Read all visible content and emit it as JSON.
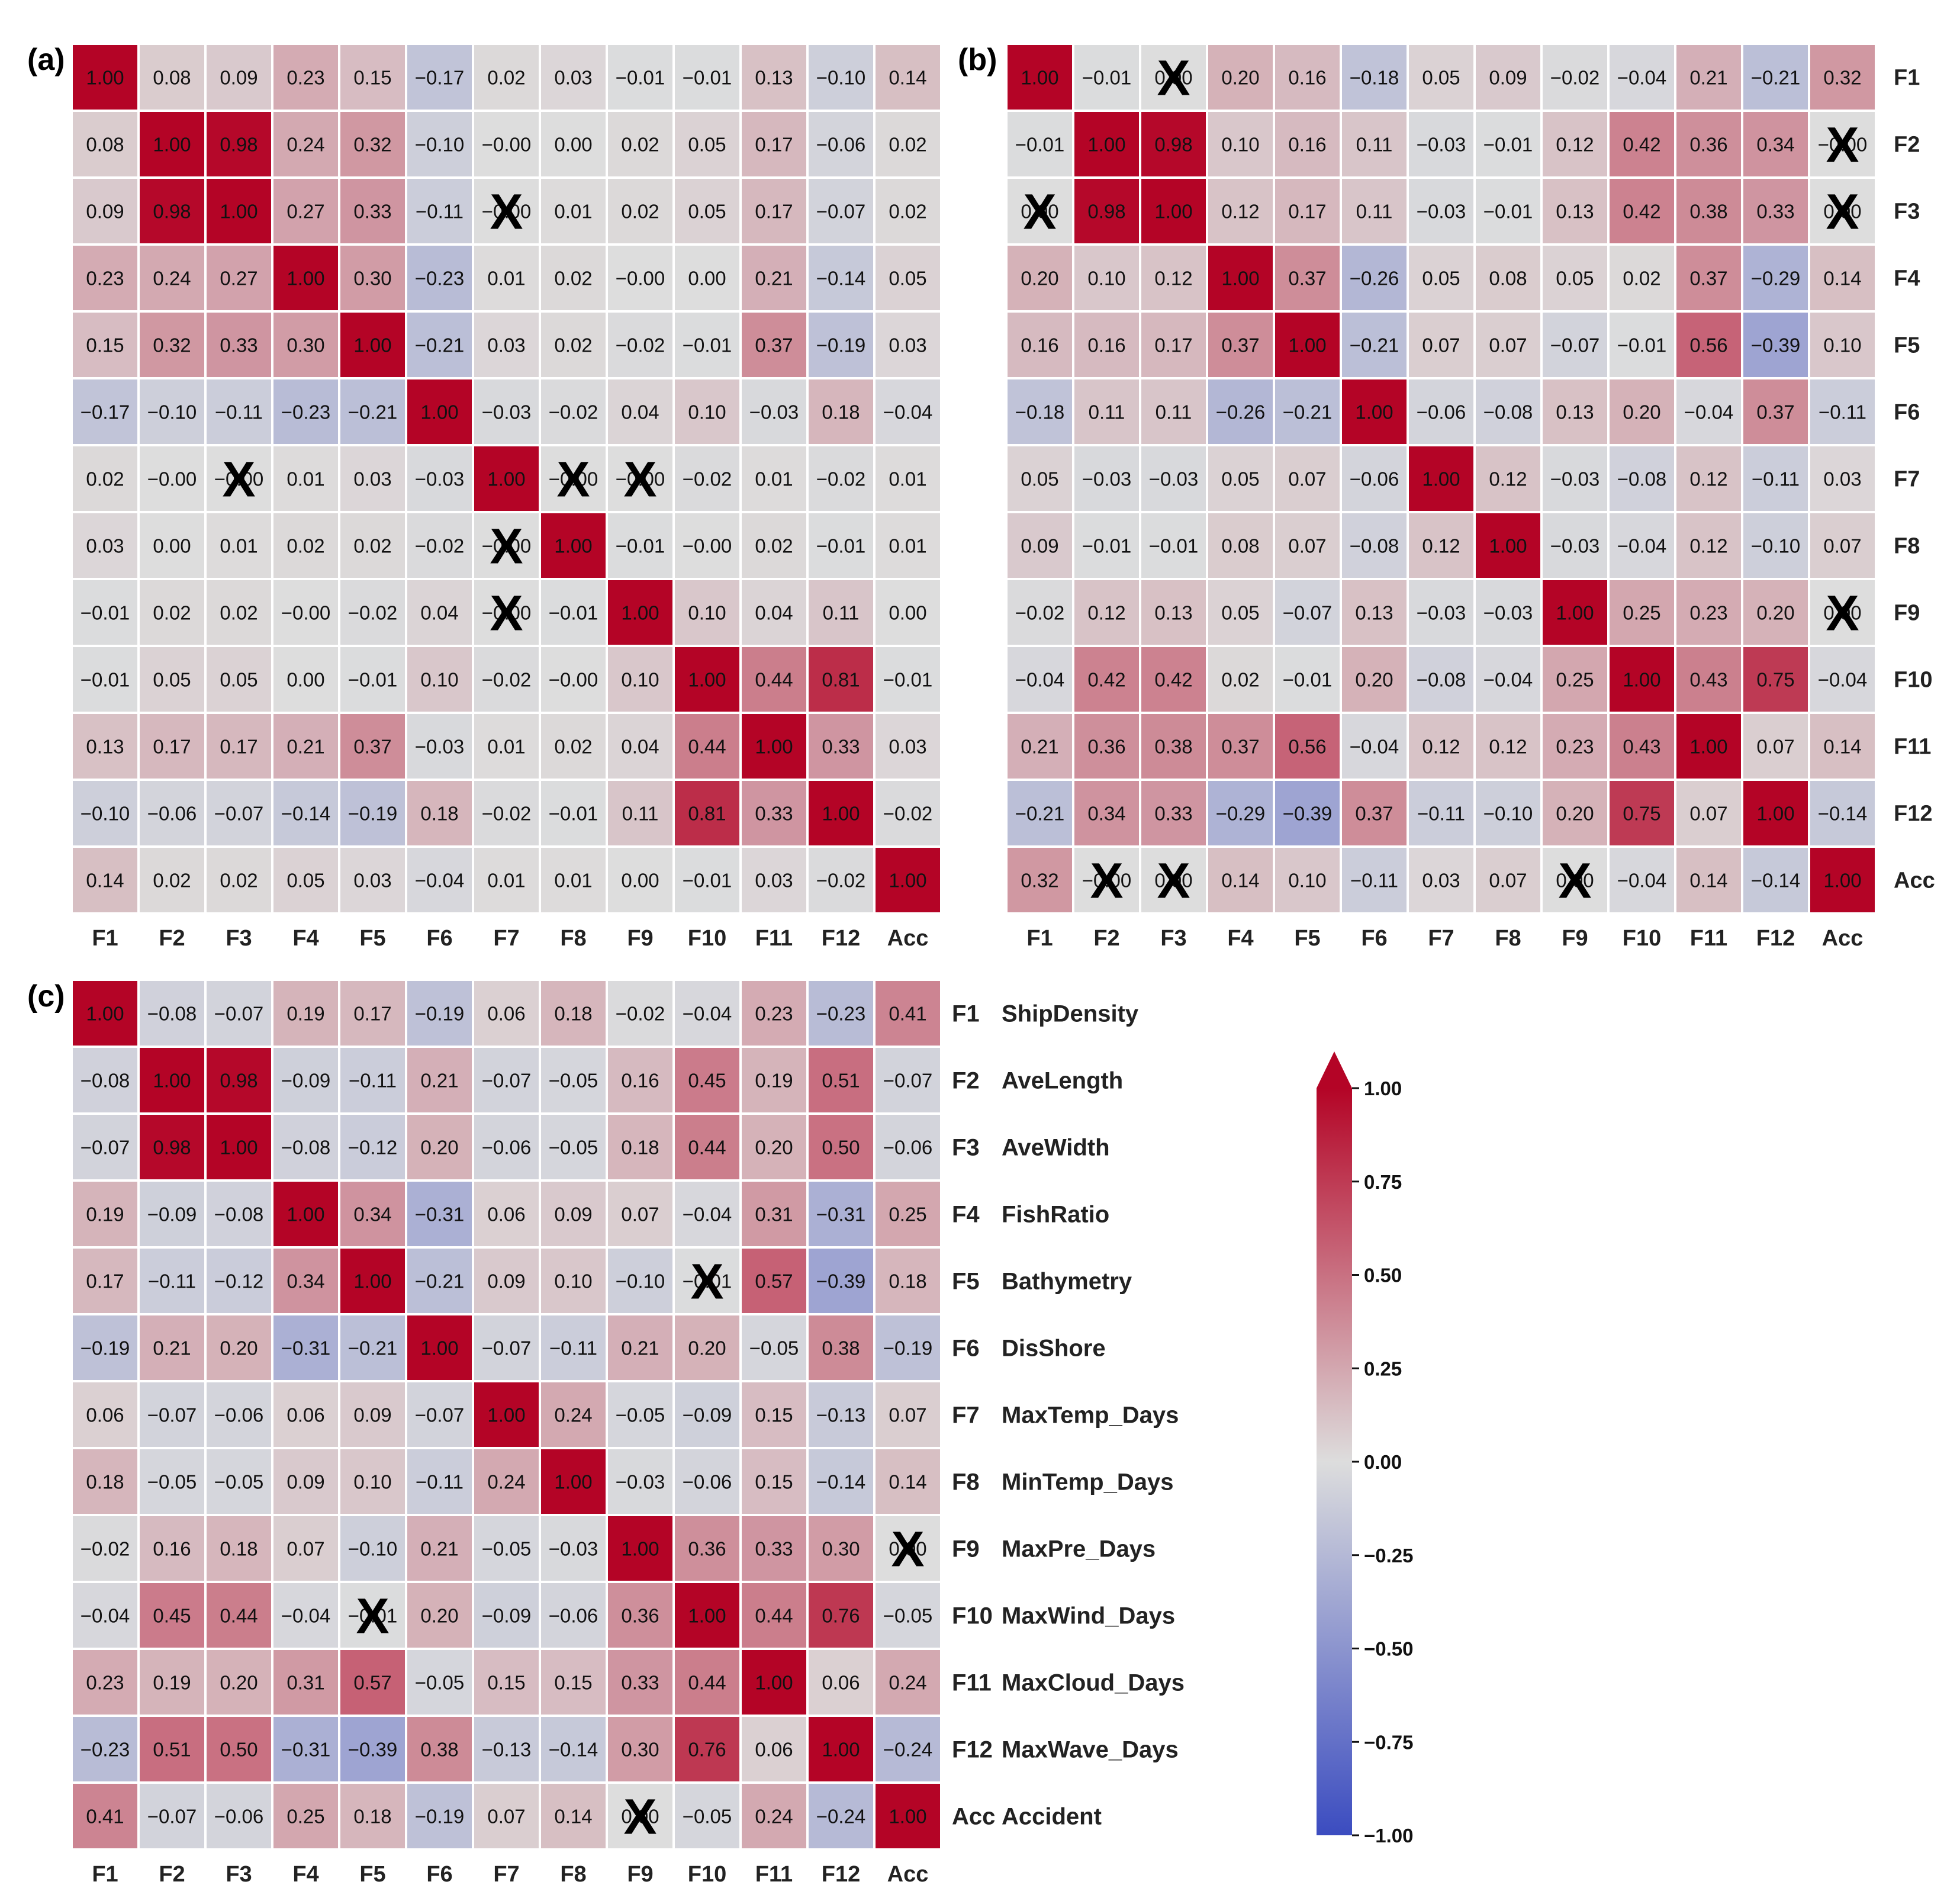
{
  "chart_data": [
    {
      "type": "heatmap",
      "panel_label": "(a)",
      "labels": [
        "F1",
        "F2",
        "F3",
        "F4",
        "F5",
        "F6",
        "F7",
        "F8",
        "F9",
        "F10",
        "F11",
        "F12",
        "Acc"
      ],
      "y_labels_shown": false,
      "values": [
        [
          "1.00",
          "0.08",
          "0.09",
          "0.23",
          "0.15",
          "−0.17",
          "0.02",
          "0.03",
          "−0.01",
          "−0.01",
          "0.13",
          "−0.10",
          "0.14"
        ],
        [
          "0.08",
          "1.00",
          "0.98",
          "0.24",
          "0.32",
          "−0.10",
          "−0.00",
          "0.00",
          "0.02",
          "0.05",
          "0.17",
          "−0.06",
          "0.02"
        ],
        [
          "0.09",
          "0.98",
          "1.00",
          "0.27",
          "0.33",
          "−0.11",
          "−0.00",
          "0.01",
          "0.02",
          "0.05",
          "0.17",
          "−0.07",
          "0.02"
        ],
        [
          "0.23",
          "0.24",
          "0.27",
          "1.00",
          "0.30",
          "−0.23",
          "0.01",
          "0.02",
          "−0.00",
          "0.00",
          "0.21",
          "−0.14",
          "0.05"
        ],
        [
          "0.15",
          "0.32",
          "0.33",
          "0.30",
          "1.00",
          "−0.21",
          "0.03",
          "0.02",
          "−0.02",
          "−0.01",
          "0.37",
          "−0.19",
          "0.03"
        ],
        [
          "−0.17",
          "−0.10",
          "−0.11",
          "−0.23",
          "−0.21",
          "1.00",
          "−0.03",
          "−0.02",
          "0.04",
          "0.10",
          "−0.03",
          "0.18",
          "−0.04"
        ],
        [
          "0.02",
          "−0.00",
          "−0.00",
          "0.01",
          "0.03",
          "−0.03",
          "1.00",
          "−0.00",
          "−0.00",
          "−0.02",
          "0.01",
          "−0.02",
          "0.01"
        ],
        [
          "0.03",
          "0.00",
          "0.01",
          "0.02",
          "0.02",
          "−0.02",
          "−0.00",
          "1.00",
          "−0.01",
          "−0.00",
          "0.02",
          "−0.01",
          "0.01"
        ],
        [
          "−0.01",
          "0.02",
          "0.02",
          "−0.00",
          "−0.02",
          "0.04",
          "−0.00",
          "−0.01",
          "1.00",
          "0.10",
          "0.04",
          "0.11",
          "0.00"
        ],
        [
          "−0.01",
          "0.05",
          "0.05",
          "0.00",
          "−0.01",
          "0.10",
          "−0.02",
          "−0.00",
          "0.10",
          "1.00",
          "0.44",
          "0.81",
          "−0.01"
        ],
        [
          "0.13",
          "0.17",
          "0.17",
          "0.21",
          "0.37",
          "−0.03",
          "0.01",
          "0.02",
          "0.04",
          "0.44",
          "1.00",
          "0.33",
          "0.03"
        ],
        [
          "−0.10",
          "−0.06",
          "−0.07",
          "−0.14",
          "−0.19",
          "0.18",
          "−0.02",
          "−0.01",
          "0.11",
          "0.81",
          "0.33",
          "1.00",
          "−0.02"
        ],
        [
          "0.14",
          "0.02",
          "0.02",
          "0.05",
          "0.03",
          "−0.04",
          "0.01",
          "0.01",
          "0.00",
          "−0.01",
          "0.03",
          "−0.02",
          "1.00"
        ]
      ],
      "crossed_cells": [
        [
          2,
          6
        ],
        [
          6,
          2
        ],
        [
          6,
          7
        ],
        [
          6,
          8
        ],
        [
          7,
          6
        ],
        [
          8,
          6
        ]
      ]
    },
    {
      "type": "heatmap",
      "panel_label": "(b)",
      "labels": [
        "F1",
        "F2",
        "F3",
        "F4",
        "F5",
        "F6",
        "F7",
        "F8",
        "F9",
        "F10",
        "F11",
        "F12",
        "Acc"
      ],
      "y_labels_shown": true,
      "values": [
        [
          "1.00",
          "−0.01",
          "0.00",
          "0.20",
          "0.16",
          "−0.18",
          "0.05",
          "0.09",
          "−0.02",
          "−0.04",
          "0.21",
          "−0.21",
          "0.32"
        ],
        [
          "−0.01",
          "1.00",
          "0.98",
          "0.10",
          "0.16",
          "0.11",
          "−0.03",
          "−0.01",
          "0.12",
          "0.42",
          "0.36",
          "0.34",
          "−0.00"
        ],
        [
          "0.00",
          "0.98",
          "1.00",
          "0.12",
          "0.17",
          "0.11",
          "−0.03",
          "−0.01",
          "0.13",
          "0.42",
          "0.38",
          "0.33",
          "0.00"
        ],
        [
          "0.20",
          "0.10",
          "0.12",
          "1.00",
          "0.37",
          "−0.26",
          "0.05",
          "0.08",
          "0.05",
          "0.02",
          "0.37",
          "−0.29",
          "0.14"
        ],
        [
          "0.16",
          "0.16",
          "0.17",
          "0.37",
          "1.00",
          "−0.21",
          "0.07",
          "0.07",
          "−0.07",
          "−0.01",
          "0.56",
          "−0.39",
          "0.10"
        ],
        [
          "−0.18",
          "0.11",
          "0.11",
          "−0.26",
          "−0.21",
          "1.00",
          "−0.06",
          "−0.08",
          "0.13",
          "0.20",
          "−0.04",
          "0.37",
          "−0.11"
        ],
        [
          "0.05",
          "−0.03",
          "−0.03",
          "0.05",
          "0.07",
          "−0.06",
          "1.00",
          "0.12",
          "−0.03",
          "−0.08",
          "0.12",
          "−0.11",
          "0.03"
        ],
        [
          "0.09",
          "−0.01",
          "−0.01",
          "0.08",
          "0.07",
          "−0.08",
          "0.12",
          "1.00",
          "−0.03",
          "−0.04",
          "0.12",
          "−0.10",
          "0.07"
        ],
        [
          "−0.02",
          "0.12",
          "0.13",
          "0.05",
          "−0.07",
          "0.13",
          "−0.03",
          "−0.03",
          "1.00",
          "0.25",
          "0.23",
          "0.20",
          "0.00"
        ],
        [
          "−0.04",
          "0.42",
          "0.42",
          "0.02",
          "−0.01",
          "0.20",
          "−0.08",
          "−0.04",
          "0.25",
          "1.00",
          "0.43",
          "0.75",
          "−0.04"
        ],
        [
          "0.21",
          "0.36",
          "0.38",
          "0.37",
          "0.56",
          "−0.04",
          "0.12",
          "0.12",
          "0.23",
          "0.43",
          "1.00",
          "0.07",
          "0.14"
        ],
        [
          "−0.21",
          "0.34",
          "0.33",
          "−0.29",
          "−0.39",
          "0.37",
          "−0.11",
          "−0.10",
          "0.20",
          "0.75",
          "0.07",
          "1.00",
          "−0.14"
        ],
        [
          "0.32",
          "−0.00",
          "0.00",
          "0.14",
          "0.10",
          "−0.11",
          "0.03",
          "0.07",
          "0.00",
          "−0.04",
          "0.14",
          "−0.14",
          "1.00"
        ]
      ],
      "crossed_cells": [
        [
          0,
          2
        ],
        [
          1,
          12
        ],
        [
          2,
          0
        ],
        [
          2,
          12
        ],
        [
          8,
          12
        ],
        [
          12,
          1
        ],
        [
          12,
          2
        ],
        [
          12,
          8
        ]
      ]
    },
    {
      "type": "heatmap",
      "panel_label": "(c)",
      "labels": [
        "F1",
        "F2",
        "F3",
        "F4",
        "F5",
        "F6",
        "F7",
        "F8",
        "F9",
        "F10",
        "F11",
        "F12",
        "Acc"
      ],
      "y_labels_shown": false,
      "values": [
        [
          "1.00",
          "−0.08",
          "−0.07",
          "0.19",
          "0.17",
          "−0.19",
          "0.06",
          "0.18",
          "−0.02",
          "−0.04",
          "0.23",
          "−0.23",
          "0.41"
        ],
        [
          "−0.08",
          "1.00",
          "0.98",
          "−0.09",
          "−0.11",
          "0.21",
          "−0.07",
          "−0.05",
          "0.16",
          "0.45",
          "0.19",
          "0.51",
          "−0.07"
        ],
        [
          "−0.07",
          "0.98",
          "1.00",
          "−0.08",
          "−0.12",
          "0.20",
          "−0.06",
          "−0.05",
          "0.18",
          "0.44",
          "0.20",
          "0.50",
          "−0.06"
        ],
        [
          "0.19",
          "−0.09",
          "−0.08",
          "1.00",
          "0.34",
          "−0.31",
          "0.06",
          "0.09",
          "0.07",
          "−0.04",
          "0.31",
          "−0.31",
          "0.25"
        ],
        [
          "0.17",
          "−0.11",
          "−0.12",
          "0.34",
          "1.00",
          "−0.21",
          "0.09",
          "0.10",
          "−0.10",
          "−0.01",
          "0.57",
          "−0.39",
          "0.18"
        ],
        [
          "−0.19",
          "0.21",
          "0.20",
          "−0.31",
          "−0.21",
          "1.00",
          "−0.07",
          "−0.11",
          "0.21",
          "0.20",
          "−0.05",
          "0.38",
          "−0.19"
        ],
        [
          "0.06",
          "−0.07",
          "−0.06",
          "0.06",
          "0.09",
          "−0.07",
          "1.00",
          "0.24",
          "−0.05",
          "−0.09",
          "0.15",
          "−0.13",
          "0.07"
        ],
        [
          "0.18",
          "−0.05",
          "−0.05",
          "0.09",
          "0.10",
          "−0.11",
          "0.24",
          "1.00",
          "−0.03",
          "−0.06",
          "0.15",
          "−0.14",
          "0.14"
        ],
        [
          "−0.02",
          "0.16",
          "0.18",
          "0.07",
          "−0.10",
          "0.21",
          "−0.05",
          "−0.03",
          "1.00",
          "0.36",
          "0.33",
          "0.30",
          "0.00"
        ],
        [
          "−0.04",
          "0.45",
          "0.44",
          "−0.04",
          "−0.01",
          "0.20",
          "−0.09",
          "−0.06",
          "0.36",
          "1.00",
          "0.44",
          "0.76",
          "−0.05"
        ],
        [
          "0.23",
          "0.19",
          "0.20",
          "0.31",
          "0.57",
          "−0.05",
          "0.15",
          "0.15",
          "0.33",
          "0.44",
          "1.00",
          "0.06",
          "0.24"
        ],
        [
          "−0.23",
          "0.51",
          "0.50",
          "−0.31",
          "−0.39",
          "0.38",
          "−0.13",
          "−0.14",
          "0.30",
          "0.76",
          "0.06",
          "1.00",
          "−0.24"
        ],
        [
          "0.41",
          "−0.07",
          "−0.06",
          "0.25",
          "0.18",
          "−0.19",
          "0.07",
          "0.14",
          "0.00",
          "−0.05",
          "0.24",
          "−0.24",
          "1.00"
        ]
      ],
      "crossed_cells": [
        [
          4,
          9
        ],
        [
          8,
          12
        ],
        [
          9,
          4
        ],
        [
          12,
          8
        ]
      ]
    }
  ],
  "legend": [
    {
      "code": "F1",
      "name": "ShipDensity"
    },
    {
      "code": "F2",
      "name": "AveLength"
    },
    {
      "code": "F3",
      "name": "AveWidth"
    },
    {
      "code": "F4",
      "name": "FishRatio"
    },
    {
      "code": "F5",
      "name": "Bathymetry"
    },
    {
      "code": "F6",
      "name": "DisShore"
    },
    {
      "code": "F7",
      "name": "MaxTemp_Days"
    },
    {
      "code": "F8",
      "name": "MinTemp_Days"
    },
    {
      "code": "F9",
      "name": "MaxPre_Days"
    },
    {
      "code": "F10",
      "name": "MaxWind_Days"
    },
    {
      "code": "F11",
      "name": "MaxCloud_Days"
    },
    {
      "code": "F12",
      "name": "MaxWave_Days"
    },
    {
      "code": "Acc",
      "name": "Accident"
    }
  ],
  "colorbar": {
    "range": [
      -1,
      1
    ],
    "ticks": [
      "1.00",
      "0.75",
      "0.50",
      "0.25",
      "0.00",
      "−0.25",
      "−0.50",
      "−0.75",
      "−1.00"
    ],
    "colormap": [
      "#3b4cc0",
      "#dddddd",
      "#b40426"
    ]
  },
  "cross_mark": "X"
}
